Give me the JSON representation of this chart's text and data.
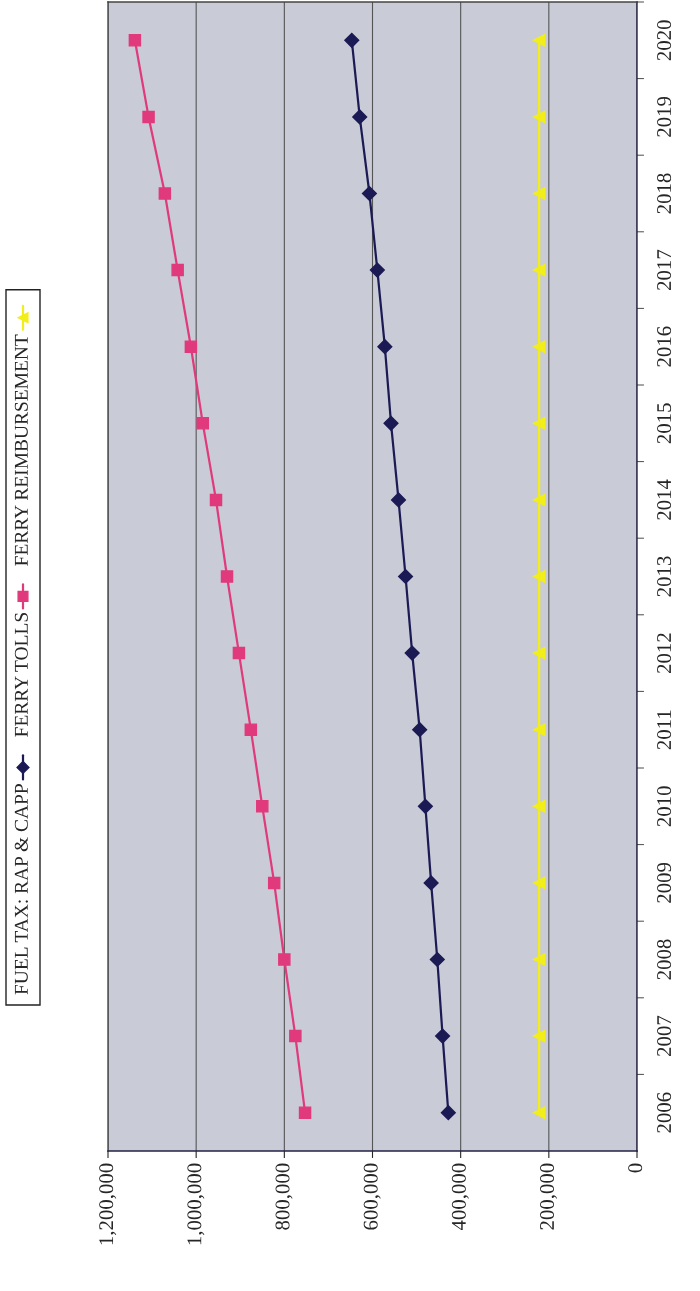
{
  "chart_data": {
    "type": "line",
    "orientation": "horizontal",
    "categories": [
      "2020",
      "2019",
      "2018",
      "2017",
      "2016",
      "2015",
      "2014",
      "2013",
      "2012",
      "2011",
      "2010",
      "2009",
      "2008",
      "2007",
      "2006"
    ],
    "series": [
      {
        "name": "FUEL TAX: RAP & CAPP",
        "color": "#1c1a55",
        "marker": "diamond",
        "values": [
          647000,
          629000,
          607000,
          589000,
          572000,
          558000,
          541000,
          525000,
          510000,
          493000,
          480000,
          467000,
          453000,
          441000,
          428000
        ]
      },
      {
        "name": "FERRY TOLLS",
        "color": "#e03a7c",
        "marker": "square",
        "values": [
          1139000,
          1108000,
          1071000,
          1042000,
          1012000,
          985000,
          955000,
          930000,
          903000,
          876000,
          850000,
          823000,
          800000,
          775000,
          753000
        ]
      },
      {
        "name": "FERRY REIMBURSEMENT",
        "color": "#f2ee1a",
        "marker": "triangle",
        "values": [
          222000,
          222000,
          222000,
          222000,
          222000,
          222000,
          222000,
          222000,
          222000,
          222000,
          222000,
          222000,
          222000,
          222000,
          222000
        ]
      }
    ],
    "xlim": [
      1200000,
      0
    ],
    "xticks": [
      {
        "value": 1200000,
        "label": "1,200,000"
      },
      {
        "value": 1000000,
        "label": "1,000,000"
      },
      {
        "value": 800000,
        "label": "800,000"
      },
      {
        "value": 600000,
        "label": "600,000"
      },
      {
        "value": 400000,
        "label": "400,000"
      },
      {
        "value": 200000,
        "label": "200,000"
      },
      {
        "value": 0,
        "label": "0"
      }
    ],
    "grid": "x",
    "legend": "left"
  }
}
